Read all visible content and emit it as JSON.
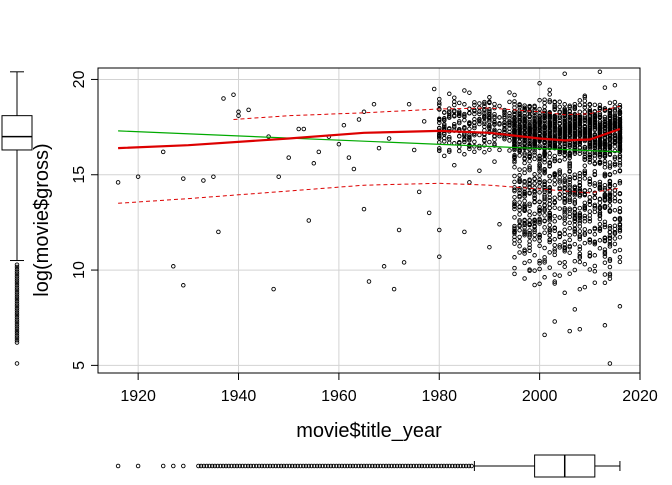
{
  "chart_data": {
    "type": "scatter",
    "title": "",
    "xlabel": "movie$title_year",
    "ylabel": "log(movie$gross)",
    "xlim": [
      1912,
      2020
    ],
    "ylim": [
      4.6,
      20.6
    ],
    "x_ticks": [
      1920,
      1940,
      1960,
      1980,
      2000,
      2020
    ],
    "y_ticks": [
      5,
      10,
      15,
      20
    ],
    "grid": true,
    "marginal_boxplots": [
      "left",
      "bottom"
    ],
    "colors": {
      "points": "#000000",
      "smooth": "#dd0000",
      "linear": "#00aa00",
      "grid": "#d3d3d3"
    },
    "sample_points": [
      [
        1916,
        14.6
      ],
      [
        1920,
        14.9
      ],
      [
        1925,
        16.2
      ],
      [
        1927,
        10.2
      ],
      [
        1929,
        9.2
      ],
      [
        1929,
        14.8
      ],
      [
        1933,
        14.7
      ],
      [
        1935,
        14.9
      ],
      [
        1936,
        12.0
      ],
      [
        1937,
        19.0
      ],
      [
        1939,
        19.2
      ],
      [
        1940,
        18.1
      ],
      [
        1940,
        18.3
      ],
      [
        1942,
        18.4
      ],
      [
        1946,
        17.0
      ],
      [
        1947,
        9.0
      ],
      [
        1948,
        14.9
      ],
      [
        1950,
        15.9
      ],
      [
        1952,
        17.4
      ],
      [
        1953,
        17.4
      ],
      [
        1954,
        12.6
      ],
      [
        1955,
        15.6
      ],
      [
        1956,
        16.2
      ],
      [
        1958,
        17.0
      ],
      [
        1960,
        16.6
      ],
      [
        1961,
        17.6
      ],
      [
        1962,
        15.9
      ],
      [
        1963,
        15.3
      ],
      [
        1964,
        17.9
      ],
      [
        1965,
        18.3
      ],
      [
        1965,
        13.2
      ],
      [
        1966,
        9.4
      ],
      [
        1967,
        18.7
      ],
      [
        1968,
        16.4
      ],
      [
        1969,
        10.2
      ],
      [
        1970,
        16.9
      ],
      [
        1971,
        9.0
      ],
      [
        1972,
        12.1
      ],
      [
        1973,
        10.4
      ],
      [
        1974,
        18.7
      ],
      [
        1975,
        16.3
      ],
      [
        1976,
        14.1
      ],
      [
        1977,
        17.8
      ],
      [
        1978,
        13.0
      ],
      [
        1979,
        19.5
      ],
      [
        1980,
        10.7
      ],
      [
        1980,
        12.1
      ],
      [
        1981,
        17.3
      ],
      [
        1983,
        15.5
      ],
      [
        1985,
        12.0
      ],
      [
        1986,
        14.6
      ],
      [
        1988,
        16.4
      ],
      [
        1990,
        11.2
      ],
      [
        1992,
        12.4
      ],
      [
        1995,
        9.8
      ],
      [
        2001,
        6.6
      ],
      [
        2003,
        7.3
      ],
      [
        2006,
        6.8
      ],
      [
        2008,
        6.9
      ],
      [
        2013,
        7.1
      ],
      [
        2014,
        5.1
      ],
      [
        2016,
        8.1
      ],
      [
        2000,
        19.8
      ],
      [
        2005,
        20.3
      ],
      [
        2012,
        20.4
      ],
      [
        2015,
        19.7
      ]
    ],
    "smooth_curve": {
      "x": [
        1916,
        1930,
        1950,
        1965,
        1980,
        1990,
        2000,
        2005,
        2010,
        2016
      ],
      "y": [
        16.4,
        16.55,
        16.9,
        17.2,
        17.3,
        17.2,
        16.9,
        16.8,
        16.85,
        17.4
      ]
    },
    "smooth_upper": {
      "x": [
        1939,
        1950,
        1965,
        1980,
        1990,
        2000,
        2005,
        2010,
        2016
      ],
      "y": [
        17.9,
        18.1,
        18.25,
        18.45,
        18.5,
        18.3,
        18.15,
        18.2,
        18.6
      ]
    },
    "smooth_lower": {
      "x": [
        1916,
        1930,
        1950,
        1965,
        1980,
        1990,
        2000,
        2005,
        2010,
        2016
      ],
      "y": [
        13.5,
        13.75,
        14.15,
        14.45,
        14.55,
        14.45,
        14.25,
        14.15,
        14.05,
        14.3
      ]
    },
    "linear_fit": {
      "x": [
        1916,
        2016
      ],
      "y": [
        17.3,
        16.2
      ]
    },
    "y_boxplot": {
      "min": 10.5,
      "q1": 16.3,
      "median": 17.0,
      "q3": 18.1,
      "max": 20.4
    },
    "x_boxplot": {
      "min": 1987,
      "q1": 1999,
      "median": 2005,
      "q3": 2011,
      "max": 2016
    }
  }
}
